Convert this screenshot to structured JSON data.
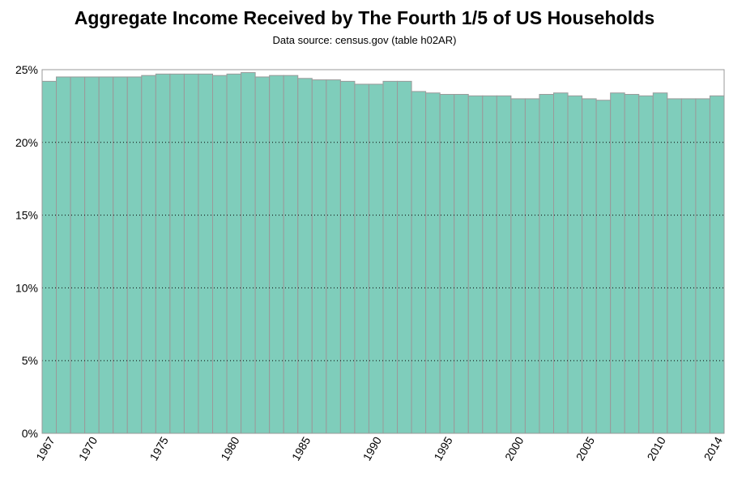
{
  "chart_data": {
    "type": "bar",
    "title": "Aggregate Income Received by The Fourth 1/5 of US Households",
    "subtitle": "Data source: census.gov (table h02AR)",
    "xlabel": "",
    "ylabel": "",
    "ylim": [
      0,
      25
    ],
    "y_ticks": [
      "0%",
      "5%",
      "10%",
      "15%",
      "20%",
      "25%"
    ],
    "x_tick_labels": [
      "1967",
      "1970",
      "1975",
      "1980",
      "1985",
      "1990",
      "1995",
      "2000",
      "2005",
      "2010",
      "2014"
    ],
    "grid": "horizontal dotted",
    "colors": {
      "bar_fill": "#7fcdbb",
      "bar_edge": "#9a9a9a",
      "frame": "#999999"
    },
    "categories": [
      "1967",
      "1968",
      "1969",
      "1970",
      "1971",
      "1972",
      "1973",
      "1974",
      "1975",
      "1976",
      "1977",
      "1978",
      "1979",
      "1980",
      "1981",
      "1982",
      "1983",
      "1984",
      "1985",
      "1986",
      "1987",
      "1988",
      "1989",
      "1990",
      "1991",
      "1992",
      "1993",
      "1994",
      "1995",
      "1996",
      "1997",
      "1998",
      "1999",
      "2000",
      "2001",
      "2002",
      "2003",
      "2004",
      "2005",
      "2006",
      "2007",
      "2008",
      "2009",
      "2010",
      "2011",
      "2012",
      "2013",
      "2014"
    ],
    "values": [
      24.2,
      24.5,
      24.5,
      24.5,
      24.5,
      24.5,
      24.5,
      24.6,
      24.7,
      24.7,
      24.7,
      24.7,
      24.6,
      24.7,
      24.8,
      24.5,
      24.6,
      24.6,
      24.4,
      24.3,
      24.3,
      24.2,
      24.0,
      24.0,
      24.2,
      24.2,
      23.5,
      23.4,
      23.3,
      23.3,
      23.2,
      23.2,
      23.2,
      23.0,
      23.0,
      23.3,
      23.4,
      23.2,
      23.0,
      22.9,
      23.4,
      23.3,
      23.2,
      23.4,
      23.0,
      23.0,
      23.0,
      23.2
    ]
  }
}
